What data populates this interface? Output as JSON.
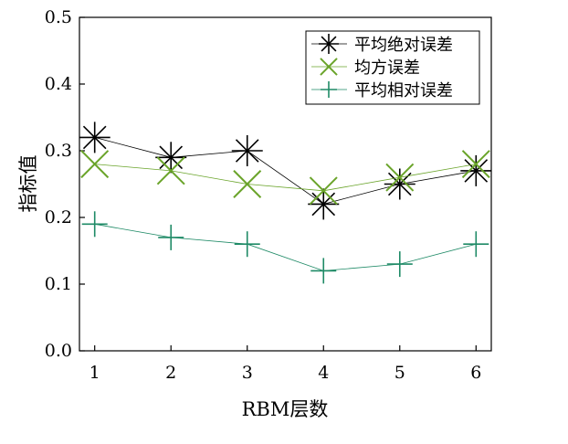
{
  "chart_data": {
    "type": "line",
    "title": "",
    "xlabel": "RBM层数",
    "ylabel": "指标值",
    "x": [
      1,
      2,
      3,
      4,
      5,
      6
    ],
    "xlim": [
      0.8,
      6.2
    ],
    "ylim": [
      0.0,
      0.5
    ],
    "xticks": [
      "1",
      "2",
      "3",
      "4",
      "5",
      "6"
    ],
    "yticks": [
      "0.0",
      "0.1",
      "0.2",
      "0.3",
      "0.4",
      "0.5"
    ],
    "grid": false,
    "legend_position": "top-right",
    "series": [
      {
        "name": "平均绝对误差",
        "values": [
          0.32,
          0.29,
          0.3,
          0.22,
          0.25,
          0.27
        ],
        "color": "#000000",
        "marker": "asterisk"
      },
      {
        "name": "均方误差",
        "values": [
          0.28,
          0.27,
          0.25,
          0.24,
          0.26,
          0.28
        ],
        "color": "#6aa42a",
        "marker": "x"
      },
      {
        "name": "平均相对误差",
        "values": [
          0.19,
          0.17,
          0.16,
          0.12,
          0.13,
          0.16
        ],
        "color": "#1e8a66",
        "marker": "plus"
      }
    ]
  }
}
